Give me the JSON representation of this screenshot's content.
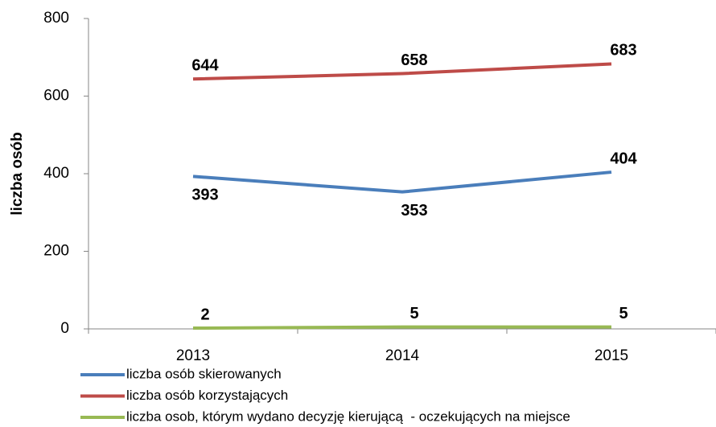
{
  "chart_data": {
    "type": "line",
    "y_label": "liczba osób",
    "categories": [
      "2013",
      "2014",
      "2015"
    ],
    "series": [
      {
        "name": "liczba osób skierowanych",
        "color": "#4a7ebb",
        "values": [
          393,
          353,
          404
        ]
      },
      {
        "name": "liczba osób korzystających",
        "color": "#be4b48",
        "values": [
          644,
          658,
          683
        ]
      },
      {
        "name": "liczba osob, którym wydano decyzję kierującą  - oczekujących na miejsce",
        "color": "#98b954",
        "values": [
          2,
          5,
          5
        ]
      }
    ],
    "ylim": [
      0,
      800
    ],
    "yticks": [
      0,
      200,
      400,
      600,
      800
    ],
    "grid": false,
    "legend": "bottom"
  }
}
